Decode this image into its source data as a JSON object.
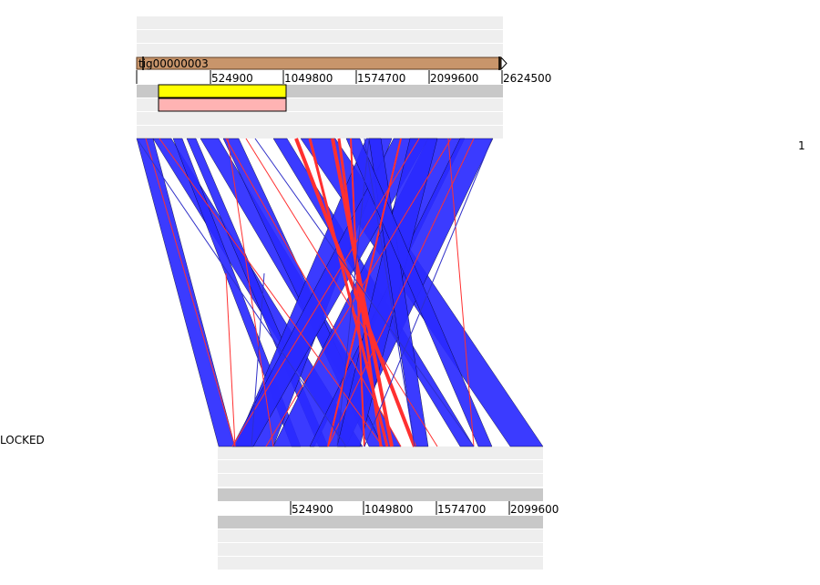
{
  "top_genome": {
    "contig_label": "tig00000003",
    "ticks": [
      "524900",
      "1049800",
      "1574700",
      "2099600",
      "2624500"
    ],
    "contig_color": "#c8956b",
    "feature_colors": [
      "#ffff00",
      "#ffb3b3"
    ]
  },
  "bottom_genome": {
    "ticks": [
      "524900",
      "1049800",
      "1574700",
      "2099600"
    ]
  },
  "status": {
    "locked_label": "LOCKED",
    "page_number": "1"
  },
  "colors": {
    "forward_match": "#2a2aff",
    "reverse_match": "#ff3030",
    "track_light": "#eeeeee",
    "track_dark": "#c8c8c8"
  }
}
